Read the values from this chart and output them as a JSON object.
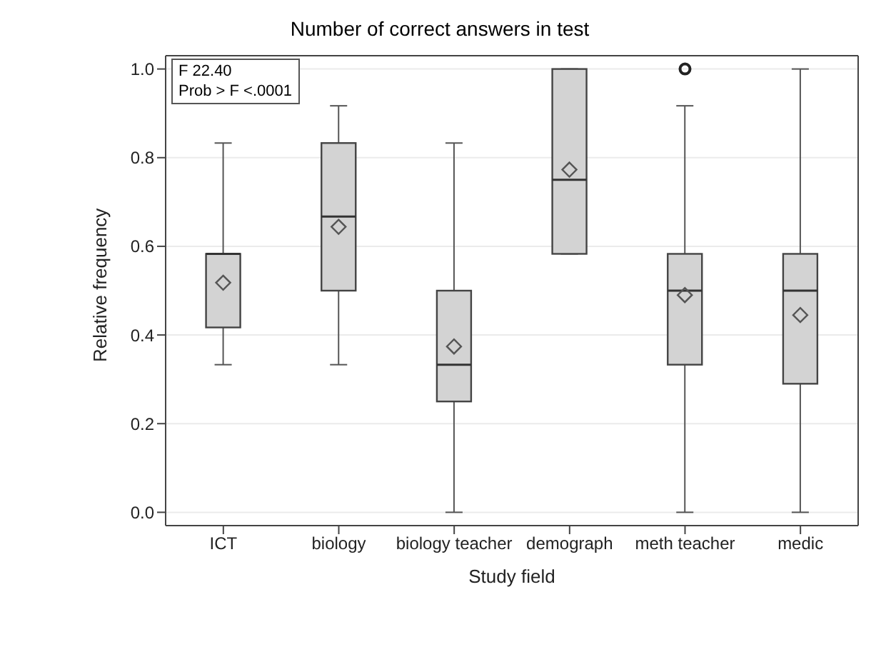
{
  "chart_data": {
    "type": "box",
    "title": "Number of correct answers in test",
    "xlabel": "Study field",
    "ylabel": "Relative frequency",
    "categories": [
      "ICT",
      "biology",
      "biology teacher",
      "demograph",
      "meth teacher",
      "medic"
    ],
    "color": "#d3d3d3",
    "boxes": [
      {
        "low": 0.333,
        "q1": 0.417,
        "median": 0.583,
        "q3": 0.583,
        "high": 0.833,
        "mean": 0.518
      },
      {
        "low": 0.333,
        "q1": 0.5,
        "median": 0.667,
        "q3": 0.833,
        "high": 0.917,
        "mean": 0.644
      },
      {
        "low": 0,
        "q1": 0.25,
        "median": 0.333,
        "q3": 0.5,
        "high": 0.833,
        "mean": 0.374
      },
      {
        "low": 0.583,
        "q1": 0.583,
        "median": 0.75,
        "q3": 1.0,
        "high": 1.0,
        "mean": 0.773
      },
      {
        "low": 0,
        "q1": 0.333,
        "median": 0.5,
        "q3": 0.583,
        "high": 0.917,
        "mean": 0.49,
        "outliers": [
          1.0
        ]
      },
      {
        "low": 0,
        "q1": 0.29,
        "median": 0.5,
        "q3": 0.583,
        "high": 1.0,
        "mean": 0.445
      }
    ],
    "ylim": [
      -0.03,
      1.03
    ],
    "yticks": [
      {
        "value": 0,
        "label": "0.0"
      },
      {
        "value": 0.2,
        "label": "0.2"
      },
      {
        "value": 0.4,
        "label": "0.4"
      },
      {
        "value": 0.6,
        "label": "0.6"
      },
      {
        "value": 0.8,
        "label": "0.8"
      },
      {
        "value": 1,
        "label": "1.0"
      }
    ],
    "grid": "y",
    "marker": "diamond",
    "annotations": [
      "F 22.40",
      "Prob > F <.0001"
    ]
  }
}
